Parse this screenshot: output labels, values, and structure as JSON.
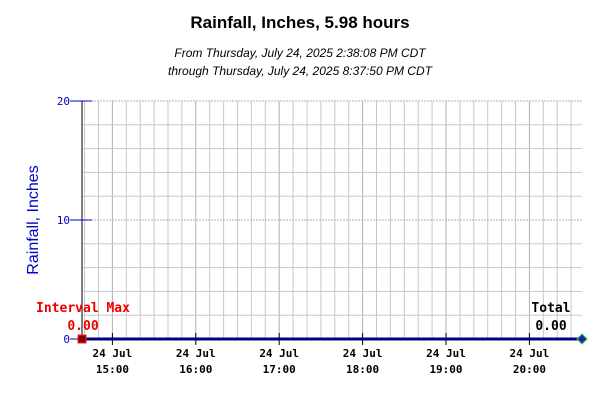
{
  "chart_data": {
    "type": "line",
    "title": "Rainfall, Inches, 5.98 hours",
    "subtitle_line1": "From Thursday, July 24, 2025 2:38:08 PM CDT",
    "subtitle_line2": "through Thursday, July 24, 2025 8:37:50 PM CDT",
    "ylabel": "Rainfall, Inches",
    "xlabel": "",
    "ylim": [
      0,
      20
    ],
    "xlim": [
      "14:38:08",
      "20:37:50"
    ],
    "y_ticks": [
      "20",
      "10",
      "0"
    ],
    "x_ticks": [
      {
        "time": "15:00",
        "date": "24 Jul"
      },
      {
        "time": "16:00",
        "date": "24 Jul"
      },
      {
        "time": "17:00",
        "date": "24 Jul"
      },
      {
        "time": "18:00",
        "date": "24 Jul"
      },
      {
        "time": "19:00",
        "date": "24 Jul"
      },
      {
        "time": "20:00",
        "date": "24 Jul"
      }
    ],
    "grid": true,
    "series": [
      {
        "values": [
          {
            "x": "14:38:08",
            "y": 0
          },
          {
            "x": "20:37:50",
            "y": 0
          }
        ]
      }
    ],
    "annotations": {
      "interval_max_label": "Interval Max",
      "interval_max_value": "0.00",
      "total_label": "Total",
      "total_value": "0.00"
    },
    "colors": {
      "line": "#000080",
      "ylabel": "#0000cc",
      "annot_max": "#ee0000",
      "grid": "#c8c8c8",
      "max_marker": "#800000",
      "end_marker": "#2222aa"
    }
  }
}
